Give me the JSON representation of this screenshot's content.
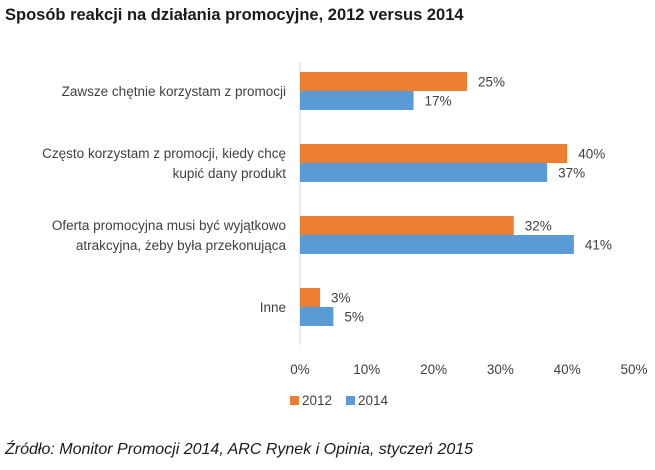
{
  "title": "Sposób reakcji na działania promocyjne, 2012 versus 2014",
  "source": "Źródło: Monitor Promocji 2014, ARC Rynek i Opinia, styczeń 2015",
  "colors": {
    "2012": "#ED7D31",
    "2014": "#5B9BD5"
  },
  "chart_data": {
    "type": "bar",
    "orientation": "horizontal",
    "title": "Sposób reakcji na działania promocyjne, 2012 versus 2014",
    "categories": [
      "Zawsze chętnie korzystam z promocji",
      "Często korzystam z promocji, kiedy chcę kupić dany produkt",
      "Oferta promocyjna musi być wyjątkowo atrakcyjna, żeby była przekonująca",
      "Inne"
    ],
    "category_lines": [
      [
        "Zawsze chętnie korzystam z promocji"
      ],
      [
        "Często korzystam z promocji, kiedy chcę",
        "kupić dany produkt"
      ],
      [
        "Oferta promocyjna musi być wyjątkowo",
        "atrakcyjna, żeby była przekonująca"
      ],
      [
        "Inne"
      ]
    ],
    "series": [
      {
        "name": "2012",
        "values": [
          25,
          40,
          32,
          3
        ]
      },
      {
        "name": "2014",
        "values": [
          17,
          37,
          41,
          5
        ]
      }
    ],
    "value_suffix": "%",
    "xlim": [
      0,
      50
    ],
    "xticks": [
      "0%",
      "10%",
      "20%",
      "30%",
      "40%",
      "50%"
    ],
    "xlabel": "",
    "ylabel": "",
    "grid": false,
    "legend": "bottom"
  }
}
